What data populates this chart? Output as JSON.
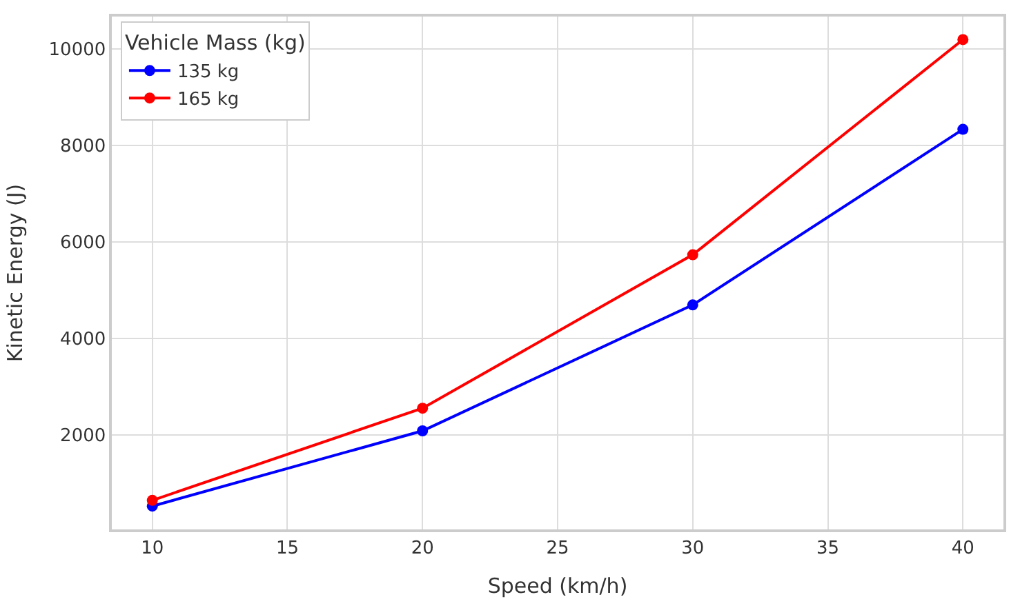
{
  "chart_data": {
    "type": "line",
    "xlabel": "Speed (km/h)",
    "ylabel": "Kinetic Energy (J)",
    "legend_title": "Vehicle Mass (kg)",
    "x": [
      10,
      20,
      30,
      40
    ],
    "series": [
      {
        "name": "135 kg",
        "color": "#0000ff",
        "values": [
          520,
          2080,
          4690,
          8330
        ]
      },
      {
        "name": "165 kg",
        "color": "#ff0000",
        "values": [
          640,
          2550,
          5730,
          10190
        ]
      }
    ],
    "xlim": [
      8.5,
      41.5
    ],
    "xticks": [
      10,
      15,
      20,
      25,
      30,
      35,
      40
    ],
    "ylim": [
      37,
      10668
    ],
    "yticks": [
      2000,
      4000,
      6000,
      8000,
      10000
    ],
    "grid": true,
    "legend": "top left",
    "marker": "circle",
    "line_style": "solid"
  }
}
